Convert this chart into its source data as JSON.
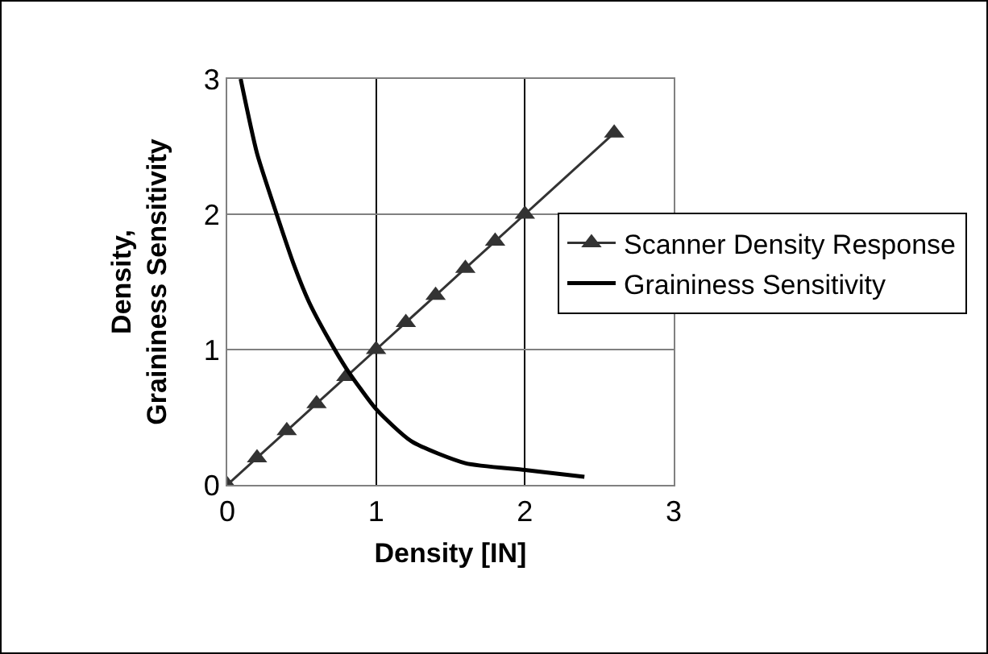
{
  "chart_data": {
    "type": "line",
    "xlabel": "Density [IN]",
    "ylabel": "Density, Graininess Sensitivity",
    "xlim": [
      0,
      3
    ],
    "xticks": [
      0,
      1,
      2,
      3
    ],
    "ylim": [
      0,
      3
    ],
    "yticks": [
      0,
      1,
      2,
      3
    ],
    "grid": true,
    "legend": "right",
    "series": [
      {
        "name": "Scanner Density Response",
        "color": "#333333",
        "marker": "triangle",
        "x": [
          0,
          0.2,
          0.4,
          0.6,
          0.8,
          1.0,
          1.2,
          1.4,
          1.6,
          1.8,
          2.0,
          2.6
        ],
        "values": [
          0,
          0.2,
          0.4,
          0.6,
          0.8,
          1.0,
          1.2,
          1.4,
          1.6,
          1.8,
          2.0,
          2.6
        ]
      },
      {
        "name": "Graininess Sensitivity",
        "color": "#000000",
        "marker": "none",
        "x": [
          0.09,
          0.2,
          0.335,
          0.45,
          0.55,
          0.68,
          0.8,
          1.0,
          1.24,
          1.6,
          2.0,
          2.4
        ],
        "values": [
          3.0,
          2.45,
          1.99,
          1.62,
          1.35,
          1.08,
          0.86,
          0.56,
          0.32,
          0.16,
          0.11,
          0.06
        ]
      }
    ]
  }
}
